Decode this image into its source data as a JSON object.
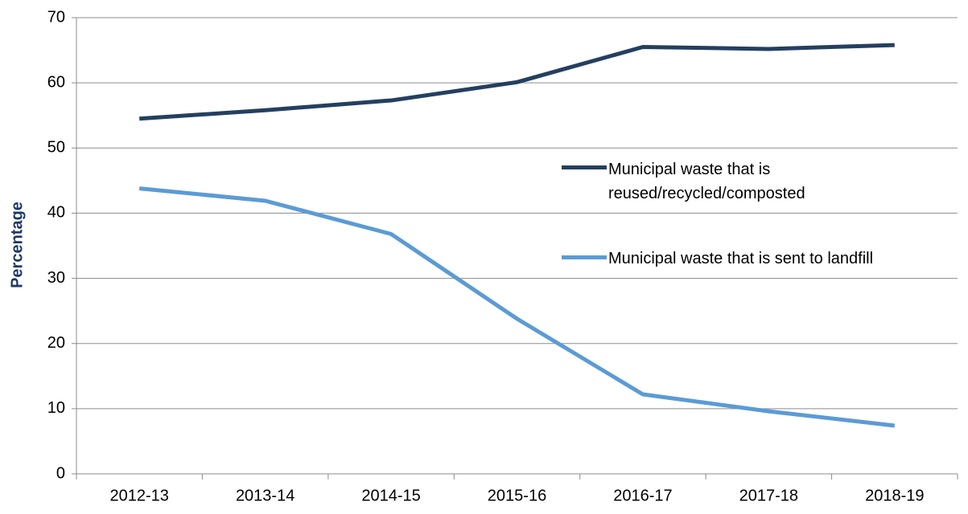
{
  "chart_data": {
    "type": "line",
    "y_label": "Percentage",
    "categories": [
      "2012-13",
      "2013-14",
      "2014-15",
      "2015-16",
      "2016-17",
      "2017-18",
      "2018-19"
    ],
    "series": [
      {
        "name": "Municipal waste that is reused/recycled/composted",
        "color": "#243f60",
        "values": [
          54.5,
          55.8,
          57.3,
          60.1,
          65.5,
          65.2,
          65.8
        ]
      },
      {
        "name": "Municipal waste that is sent to landfill",
        "color": "#5b9bd5",
        "values": [
          43.8,
          41.9,
          36.8,
          23.8,
          12.2,
          9.6,
          7.4
        ]
      }
    ],
    "ylim": [
      0,
      70
    ],
    "yticks": [
      0,
      10,
      20,
      30,
      40,
      50,
      60,
      70
    ],
    "grid": true,
    "legend": "right"
  }
}
